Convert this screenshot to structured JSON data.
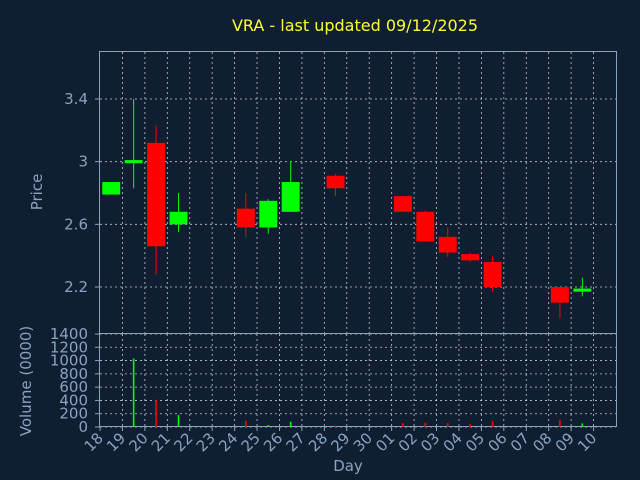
{
  "chart_data": [
    {
      "type": "candlestick",
      "title": "VRA - last updated 09/12/2025",
      "ylabel": "Price",
      "ylim": [
        1.9,
        3.7
      ],
      "yticks": [
        "2.2",
        "2.6",
        "3",
        "3.4"
      ],
      "grid": true,
      "up_color": "#00ff00",
      "down_color": "#ff0000",
      "x": [
        "18",
        "19",
        "20",
        "21",
        "22",
        "23",
        "24",
        "25",
        "26",
        "27",
        "28",
        "29",
        "30",
        "01",
        "02",
        "03",
        "04",
        "05",
        "06",
        "07",
        "08",
        "09",
        "10"
      ],
      "candles": [
        {
          "day": "18",
          "open": 2.79,
          "high": 2.87,
          "low": 2.79,
          "close": 2.87
        },
        {
          "day": "19",
          "open": 2.99,
          "high": 3.4,
          "low": 2.83,
          "close": 3.01
        },
        {
          "day": "20",
          "open": 3.12,
          "high": 3.23,
          "low": 2.28,
          "close": 2.46
        },
        {
          "day": "21",
          "open": 2.6,
          "high": 2.8,
          "low": 2.55,
          "close": 2.68
        },
        {
          "day": "24",
          "open": 2.7,
          "high": 2.8,
          "low": 2.52,
          "close": 2.58
        },
        {
          "day": "25",
          "open": 2.58,
          "high": 2.76,
          "low": 2.54,
          "close": 2.75
        },
        {
          "day": "26",
          "open": 2.68,
          "high": 3.0,
          "low": 2.68,
          "close": 2.87
        },
        {
          "day": "28",
          "open": 2.91,
          "high": 2.92,
          "low": 2.78,
          "close": 2.83
        },
        {
          "day": "01",
          "open": 2.78,
          "high": 2.78,
          "low": 2.68,
          "close": 2.68
        },
        {
          "day": "02",
          "open": 2.68,
          "high": 2.69,
          "low": 2.49,
          "close": 2.49
        },
        {
          "day": "03",
          "open": 2.52,
          "high": 2.58,
          "low": 2.39,
          "close": 2.42
        },
        {
          "day": "04",
          "open": 2.41,
          "high": 2.42,
          "low": 2.36,
          "close": 2.37
        },
        {
          "day": "05",
          "open": 2.36,
          "high": 2.4,
          "low": 2.17,
          "close": 2.2
        },
        {
          "day": "08",
          "open": 2.2,
          "high": 2.2,
          "low": 2.0,
          "close": 2.1
        },
        {
          "day": "09",
          "open": 2.17,
          "high": 2.26,
          "low": 2.14,
          "close": 2.19
        }
      ]
    },
    {
      "type": "bar",
      "ylabel": "Volume (0000)",
      "xlabel": "Day",
      "ylim": [
        0,
        1400
      ],
      "yticks": [
        "0",
        "200",
        "400",
        "600",
        "800",
        "1000",
        "1200",
        "1400"
      ],
      "categories": [
        "18",
        "19",
        "20",
        "21",
        "22",
        "23",
        "24",
        "25",
        "26",
        "27",
        "28",
        "29",
        "30",
        "01",
        "02",
        "03",
        "04",
        "05",
        "06",
        "07",
        "08",
        "09",
        "10"
      ],
      "values": [
        5,
        1030,
        410,
        180,
        0,
        0,
        95,
        30,
        80,
        0,
        20,
        0,
        0,
        60,
        65,
        60,
        45,
        90,
        0,
        0,
        110,
        55,
        0
      ],
      "colors": [
        "#00ff00",
        "#00ff00",
        "#ff0000",
        "#00ff00",
        "#00ff00",
        "#00ff00",
        "#ff0000",
        "#00ff00",
        "#00ff00",
        "#00ff00",
        "#ff0000",
        "#00ff00",
        "#00ff00",
        "#ff0000",
        "#ff0000",
        "#ff0000",
        "#ff0000",
        "#ff0000",
        "#00ff00",
        "#00ff00",
        "#ff0000",
        "#00ff00",
        "#00ff00"
      ]
    }
  ]
}
